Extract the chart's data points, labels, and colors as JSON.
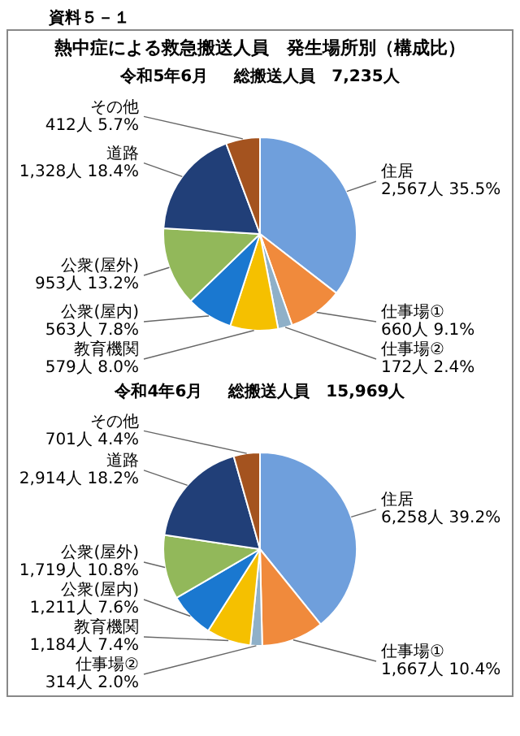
{
  "chart_data": [
    {
      "type": "pie",
      "title": "熱中症による救急搬送人員　発生場所別（構成比）",
      "subtitle": "令和5年6月",
      "annotations": [
        "資料５－１",
        "総搬送人員　7,235人"
      ],
      "categories": [
        "住居",
        "仕事場①",
        "仕事場②",
        "教育機関",
        "公衆(屋内)",
        "公衆(屋外)",
        "道路",
        "その他"
      ],
      "values": [
        2567,
        660,
        172,
        579,
        563,
        953,
        1328,
        412
      ],
      "value_labels": [
        "2,567人 35.5%",
        "660人 9.1%",
        "172人 2.4%",
        "579人 8.0%",
        "563人 7.8%",
        "953人 13.2%",
        "1,328人 18.4%",
        "412人 5.7%"
      ],
      "colors": [
        "#6f9fdc",
        "#f08a3c",
        "#8fb0c8",
        "#f5c000",
        "#1a78d0",
        "#92b85a",
        "#213f78",
        "#a4531f"
      ]
    },
    {
      "type": "pie",
      "subtitle": "令和4年6月",
      "annotations": [
        "総搬送人員　15,969人"
      ],
      "categories": [
        "住居",
        "仕事場①",
        "仕事場②",
        "教育機関",
        "公衆(屋内)",
        "公衆(屋外)",
        "道路",
        "その他"
      ],
      "values": [
        6258,
        1667,
        314,
        1184,
        1211,
        1719,
        2914,
        701
      ],
      "value_labels": [
        "6,258人 39.2%",
        "1,667人 10.4%",
        "314人 2.0%",
        "1,184人 7.4%",
        "1,211人 7.6%",
        "1,719人 10.8%",
        "2,914人 18.2%",
        "701人 4.4%"
      ],
      "colors": [
        "#6f9fdc",
        "#f08a3c",
        "#8fb0c8",
        "#f5c000",
        "#1a78d0",
        "#92b85a",
        "#213f78",
        "#a4531f"
      ]
    }
  ]
}
